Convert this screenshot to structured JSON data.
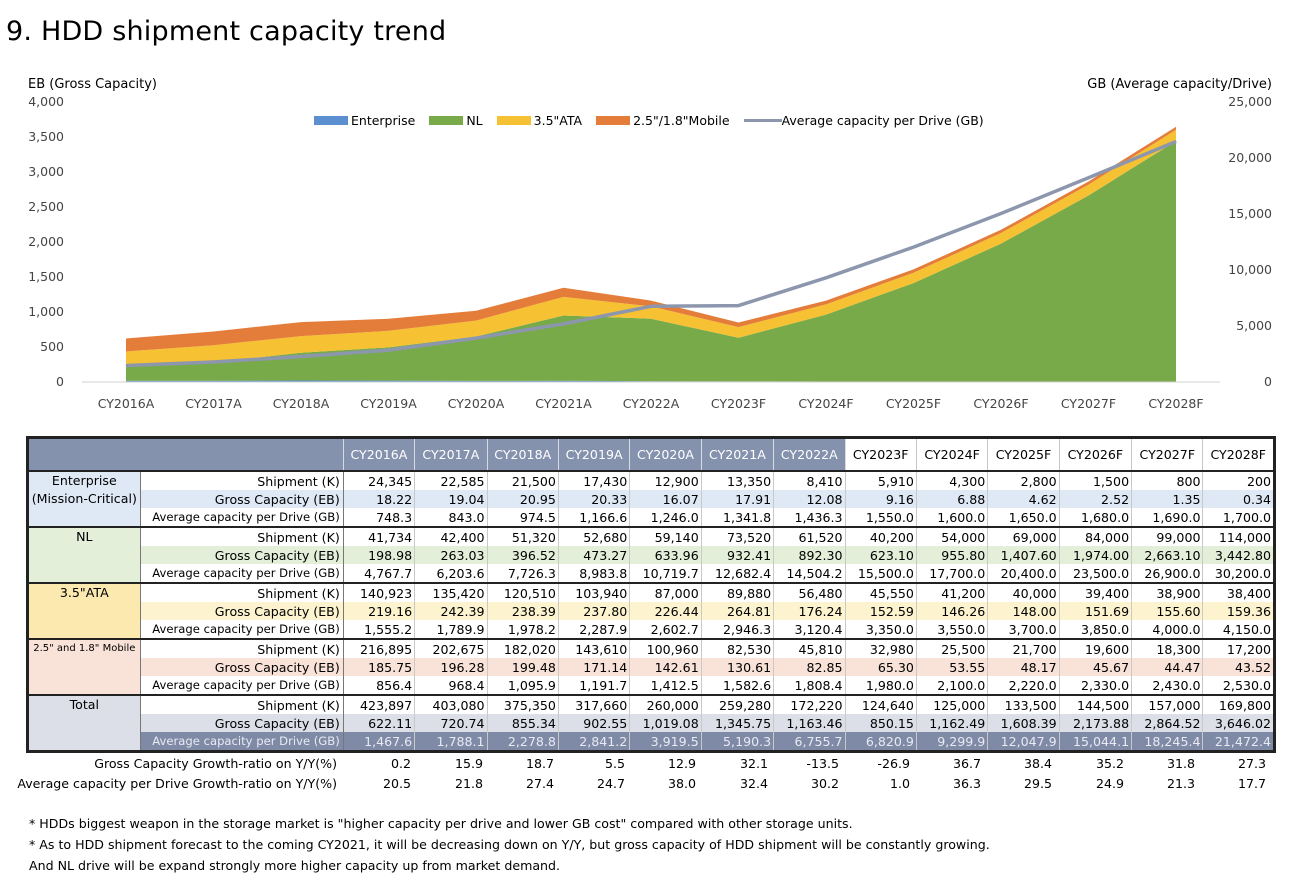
{
  "page": {
    "title": "9. HDD shipment capacity trend"
  },
  "chart_data": {
    "type": "area",
    "left_axis_label": "EB (Gross Capacity)",
    "right_axis_label": "GB (Average capacity/Drive)",
    "left_ylim": [
      0,
      4000
    ],
    "left_ticks": [
      "4,000",
      "3,500",
      "3,000",
      "2,500",
      "2,000",
      "1,500",
      "1,000",
      "500",
      "0"
    ],
    "right_ylim": [
      0,
      25000
    ],
    "right_ticks": [
      "25,000",
      "20,000",
      "15,000",
      "10,000",
      "5,000",
      "0"
    ],
    "categories": [
      "CY2016A",
      "CY2017A",
      "CY2018A",
      "CY2019A",
      "CY2020A",
      "CY2021A",
      "CY2022A",
      "CY2023F",
      "CY2024F",
      "CY2025F",
      "CY2026F",
      "CY2027F",
      "CY2028F"
    ],
    "stacked_series": [
      {
        "name": "Enterprise",
        "color": "#5b8fd0",
        "values": [
          18.22,
          19.04,
          20.95,
          20.33,
          16.07,
          17.91,
          12.08,
          9.16,
          6.88,
          4.62,
          2.52,
          1.35,
          0.34
        ]
      },
      {
        "name": "NL",
        "color": "#78aa4a",
        "values": [
          198.98,
          263.03,
          396.52,
          473.27,
          633.96,
          932.41,
          892.3,
          623.1,
          955.8,
          1407.6,
          1974.0,
          2663.1,
          3442.8
        ]
      },
      {
        "name": "3.5\"ATA",
        "color": "#f6c132",
        "values": [
          219.16,
          242.39,
          238.39,
          237.8,
          226.44,
          264.81,
          176.24,
          152.59,
          146.26,
          148.0,
          151.69,
          155.6,
          159.36
        ]
      },
      {
        "name": "2.5\"/1.8\"Mobile",
        "color": "#e57d3a",
        "values": [
          185.75,
          196.28,
          199.48,
          171.14,
          142.61,
          130.61,
          82.85,
          65.3,
          53.55,
          48.17,
          45.67,
          44.47,
          43.52
        ]
      }
    ],
    "line_series": {
      "name": "Average capacity per Drive (GB)",
      "color": "#8c97ae",
      "axis": "right",
      "values": [
        1467.6,
        1788.1,
        2278.8,
        2841.2,
        3919.5,
        5190.3,
        6755.7,
        6820.9,
        9299.9,
        12047.9,
        15044.1,
        18245.4,
        21472.4
      ]
    },
    "legend_position": "top-center"
  },
  "table": {
    "columns": [
      "CY2016A",
      "CY2017A",
      "CY2018A",
      "CY2019A",
      "CY2020A",
      "CY2021A",
      "CY2022A",
      "CY2023F",
      "CY2024F",
      "CY2025F",
      "CY2026F",
      "CY2027F",
      "CY2028F"
    ],
    "groups": [
      {
        "label_lines": [
          "Enterprise",
          "(Mission-Critical)"
        ],
        "bg": "#dfe9f6",
        "label_bg": "#dfe9f6",
        "small": false,
        "rows": [
          {
            "metric": "Shipment (K)",
            "values": [
              "24,345",
              "22,585",
              "21,500",
              "17,430",
              "12,900",
              "13,350",
              "8,410",
              "5,910",
              "4,300",
              "2,800",
              "1,500",
              "800",
              "200"
            ]
          },
          {
            "metric": "Gross Capacity (EB)",
            "values": [
              "18.22",
              "19.04",
              "20.95",
              "20.33",
              "16.07",
              "17.91",
              "12.08",
              "9.16",
              "6.88",
              "4.62",
              "2.52",
              "1.35",
              "0.34"
            ]
          },
          {
            "metric": "Average capacity per Drive (GB)",
            "values": [
              "748.3",
              "843.0",
              "974.5",
              "1,166.6",
              "1,246.0",
              "1,341.8",
              "1,436.3",
              "1,550.0",
              "1,600.0",
              "1,650.0",
              "1,680.0",
              "1,690.0",
              "1,700.0"
            ]
          }
        ]
      },
      {
        "label_lines": [
          "NL"
        ],
        "bg": "#e4efda",
        "label_bg": "#e4efda",
        "small": false,
        "rows": [
          {
            "metric": "Shipment (K)",
            "values": [
              "41,734",
              "42,400",
              "51,320",
              "52,680",
              "59,140",
              "73,520",
              "61,520",
              "40,200",
              "54,000",
              "69,000",
              "84,000",
              "99,000",
              "114,000"
            ]
          },
          {
            "metric": "Gross  Capacity (EB)",
            "values": [
              "198.98",
              "263.03",
              "396.52",
              "473.27",
              "633.96",
              "932.41",
              "892.30",
              "623.10",
              "955.80",
              "1,407.60",
              "1,974.00",
              "2,663.10",
              "3,442.80"
            ]
          },
          {
            "metric": "Average capacity per Drive (GB)",
            "values": [
              "4,767.7",
              "6,203.6",
              "7,726.3",
              "8,983.8",
              "10,719.7",
              "12,682.4",
              "14,504.2",
              "15,500.0",
              "17,700.0",
              "20,400.0",
              "23,500.0",
              "26,900.0",
              "30,200.0"
            ]
          }
        ]
      },
      {
        "label_lines": [
          "3.5\"ATA"
        ],
        "bg": "#fdf3cf",
        "label_bg": "#fbe9b0",
        "small": false,
        "rows": [
          {
            "metric": "Shipment (K)",
            "values": [
              "140,923",
              "135,420",
              "120,510",
              "103,940",
              "87,000",
              "89,880",
              "56,480",
              "45,550",
              "41,200",
              "40,000",
              "39,400",
              "38,900",
              "38,400"
            ]
          },
          {
            "metric": "Gross Capacity (EB)",
            "values": [
              "219.16",
              "242.39",
              "238.39",
              "237.80",
              "226.44",
              "264.81",
              "176.24",
              "152.59",
              "146.26",
              "148.00",
              "151.69",
              "155.60",
              "159.36"
            ]
          },
          {
            "metric": "Average capacity per Drive (GB)",
            "values": [
              "1,555.2",
              "1,789.9",
              "1,978.2",
              "2,287.9",
              "2,602.7",
              "2,946.3",
              "3,120.4",
              "3,350.0",
              "3,550.0",
              "3,700.0",
              "3,850.0",
              "4,000.0",
              "4,150.0"
            ]
          }
        ]
      },
      {
        "label_lines": [
          "2.5\" and 1.8\" Mobile"
        ],
        "bg": "#f9e3d8",
        "label_bg": "#f9e3d8",
        "small": true,
        "rows": [
          {
            "metric": "Shipment (K)",
            "values": [
              "216,895",
              "202,675",
              "182,020",
              "143,610",
              "100,960",
              "82,530",
              "45,810",
              "32,980",
              "25,500",
              "21,700",
              "19,600",
              "18,300",
              "17,200"
            ]
          },
          {
            "metric": "Gross  Capacity (EB)",
            "values": [
              "185.75",
              "196.28",
              "199.48",
              "171.14",
              "142.61",
              "130.61",
              "82.85",
              "65.30",
              "53.55",
              "48.17",
              "45.67",
              "44.47",
              "43.52"
            ]
          },
          {
            "metric": "Average capacity per Drive (GB)",
            "values": [
              "856.4",
              "968.4",
              "1,095.9",
              "1,191.7",
              "1,412.5",
              "1,582.6",
              "1,808.4",
              "1,980.0",
              "2,100.0",
              "2,220.0",
              "2,330.0",
              "2,430.0",
              "2,530.0"
            ]
          }
        ]
      },
      {
        "label_lines": [
          "Total"
        ],
        "bg": "#dcdfe8",
        "label_bg": "#dcdfe8",
        "small": false,
        "rows": [
          {
            "metric": "Shipment (K)",
            "values": [
              "423,897",
              "403,080",
              "375,350",
              "317,660",
              "260,000",
              "259,280",
              "172,220",
              "124,640",
              "125,000",
              "133,500",
              "144,500",
              "157,000",
              "169,800"
            ]
          },
          {
            "metric": "Gross Capacity (EB)",
            "values": [
              "622.11",
              "720.74",
              "855.34",
              "902.55",
              "1,019.08",
              "1,345.75",
              "1,163.46",
              "850.15",
              "1,162.49",
              "1,608.39",
              "2,173.88",
              "2,864.52",
              "3,646.02"
            ]
          },
          {
            "metric": "Average capacity per Drive (GB)",
            "values": [
              "1,467.6",
              "1,788.1",
              "2,278.8",
              "2,841.2",
              "3,919.5",
              "5,190.3",
              "6,755.7",
              "6,820.9",
              "9,299.9",
              "12,047.9",
              "15,044.1",
              "18,245.4",
              "21,472.4"
            ],
            "highlight": "#7f8aa6"
          }
        ]
      }
    ]
  },
  "growth": [
    {
      "label": "Gross Capacity Growth-ratio on Y/Y(%)",
      "values": [
        "0.2",
        "15.9",
        "18.7",
        "5.5",
        "12.9",
        "32.1",
        "-13.5",
        "-26.9",
        "36.7",
        "38.4",
        "35.2",
        "31.8",
        "27.3"
      ]
    },
    {
      "label": "Average capacity per Drive Growth-ratio on Y/Y(%)",
      "values": [
        "20.5",
        "21.8",
        "27.4",
        "24.7",
        "38.0",
        "32.4",
        "30.2",
        "1.0",
        "36.3",
        "29.5",
        "24.9",
        "21.3",
        "17.7"
      ]
    }
  ],
  "notes": [
    "* HDDs  biggest weapon in the storage market is \"higher capacity per drive and lower GB cost\"  compared with other storage units.",
    "* As to HDD shipment forecast to the coming CY2021,  it will be decreasing down on Y/Y,  but gross capacity of HDD shipment will be constantly growing.",
    "And NL drive will be expand strongly more higher capacity up from market demand."
  ]
}
